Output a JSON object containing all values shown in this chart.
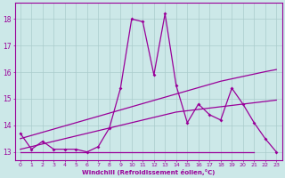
{
  "xlabel": "Windchill (Refroidissement éolien,°C)",
  "x_values": [
    0,
    1,
    2,
    3,
    4,
    5,
    6,
    7,
    8,
    9,
    10,
    11,
    12,
    13,
    14,
    15,
    16,
    17,
    18,
    19,
    20,
    21,
    22,
    23
  ],
  "jagged_y": [
    13.7,
    13.1,
    13.4,
    13.1,
    13.1,
    13.1,
    13.0,
    13.2,
    13.9,
    15.4,
    18.0,
    17.9,
    15.9,
    18.2,
    15.5,
    14.1,
    14.8,
    14.4,
    14.2,
    15.4,
    14.8,
    14.1,
    13.5,
    13.0
  ],
  "trend_upper_y": [
    13.5,
    13.62,
    13.74,
    13.86,
    13.98,
    14.1,
    14.22,
    14.34,
    14.46,
    14.58,
    14.7,
    14.82,
    14.94,
    15.06,
    15.18,
    15.3,
    15.42,
    15.54,
    15.66,
    15.75,
    15.84,
    15.93,
    16.02,
    16.1
  ],
  "trend_lower_y": [
    13.1,
    13.2,
    13.3,
    13.4,
    13.5,
    13.6,
    13.7,
    13.8,
    13.9,
    14.0,
    14.1,
    14.2,
    14.3,
    14.4,
    14.5,
    14.55,
    14.6,
    14.65,
    14.7,
    14.75,
    14.8,
    14.85,
    14.9,
    14.95
  ],
  "flat_y": 13.0,
  "flat_x_end": 21,
  "line_color": "#990099",
  "bg_color": "#cce8e8",
  "grid_color": "#aacccc",
  "ylim": [
    12.7,
    18.6
  ],
  "xlim": [
    -0.5,
    23.5
  ],
  "yticks": [
    13,
    14,
    15,
    16,
    17,
    18
  ],
  "xticks": [
    0,
    1,
    2,
    3,
    4,
    5,
    6,
    7,
    8,
    9,
    10,
    11,
    12,
    13,
    14,
    15,
    16,
    17,
    18,
    19,
    20,
    21,
    22,
    23
  ]
}
